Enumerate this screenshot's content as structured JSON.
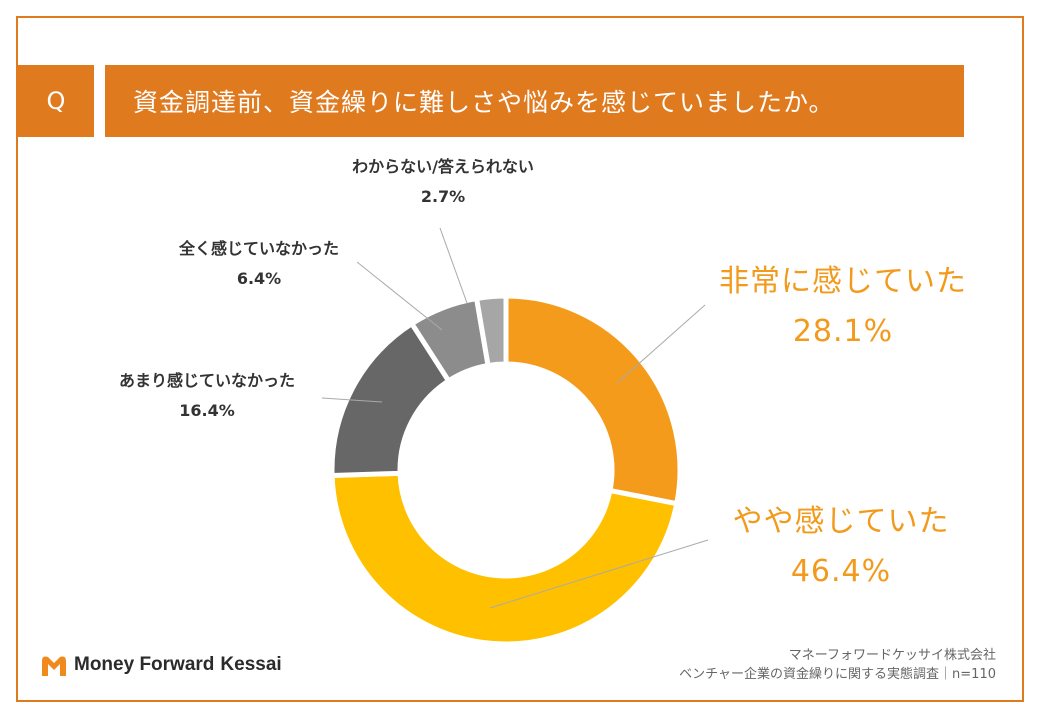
{
  "header": {
    "q_label": "Q",
    "question": "資金調達前、資金繰りに難しさや悩みを感じていましたか。"
  },
  "colors": {
    "accent": "#E07A1F",
    "highlight_text": "#F29A1C",
    "label_text": "#333333"
  },
  "chart_data": {
    "type": "pie",
    "subtype": "donut",
    "categories": [
      "非常に感じていた",
      "やや感じていた",
      "あまり感じていなかった",
      "全く感じていなかった",
      "わからない/答えられない"
    ],
    "values": [
      28.1,
      46.4,
      16.4,
      6.4,
      2.7
    ],
    "value_labels": [
      "28.1%",
      "46.4%",
      "16.4%",
      "6.4%",
      "2.7%"
    ],
    "colors": [
      "#F59B1B",
      "#FFC000",
      "#676767",
      "#8C8C8C",
      "#A6A6A6"
    ],
    "start_angle": "12 o'clock, clockwise"
  },
  "footer": {
    "logo_word1": "Money Forward",
    "logo_word2": "Kessai",
    "source_line1": "マネーフォワードケッサイ株式会社",
    "source_line2": "ベンチャー企業の資金繰りに関する実態調査｜n=110"
  }
}
